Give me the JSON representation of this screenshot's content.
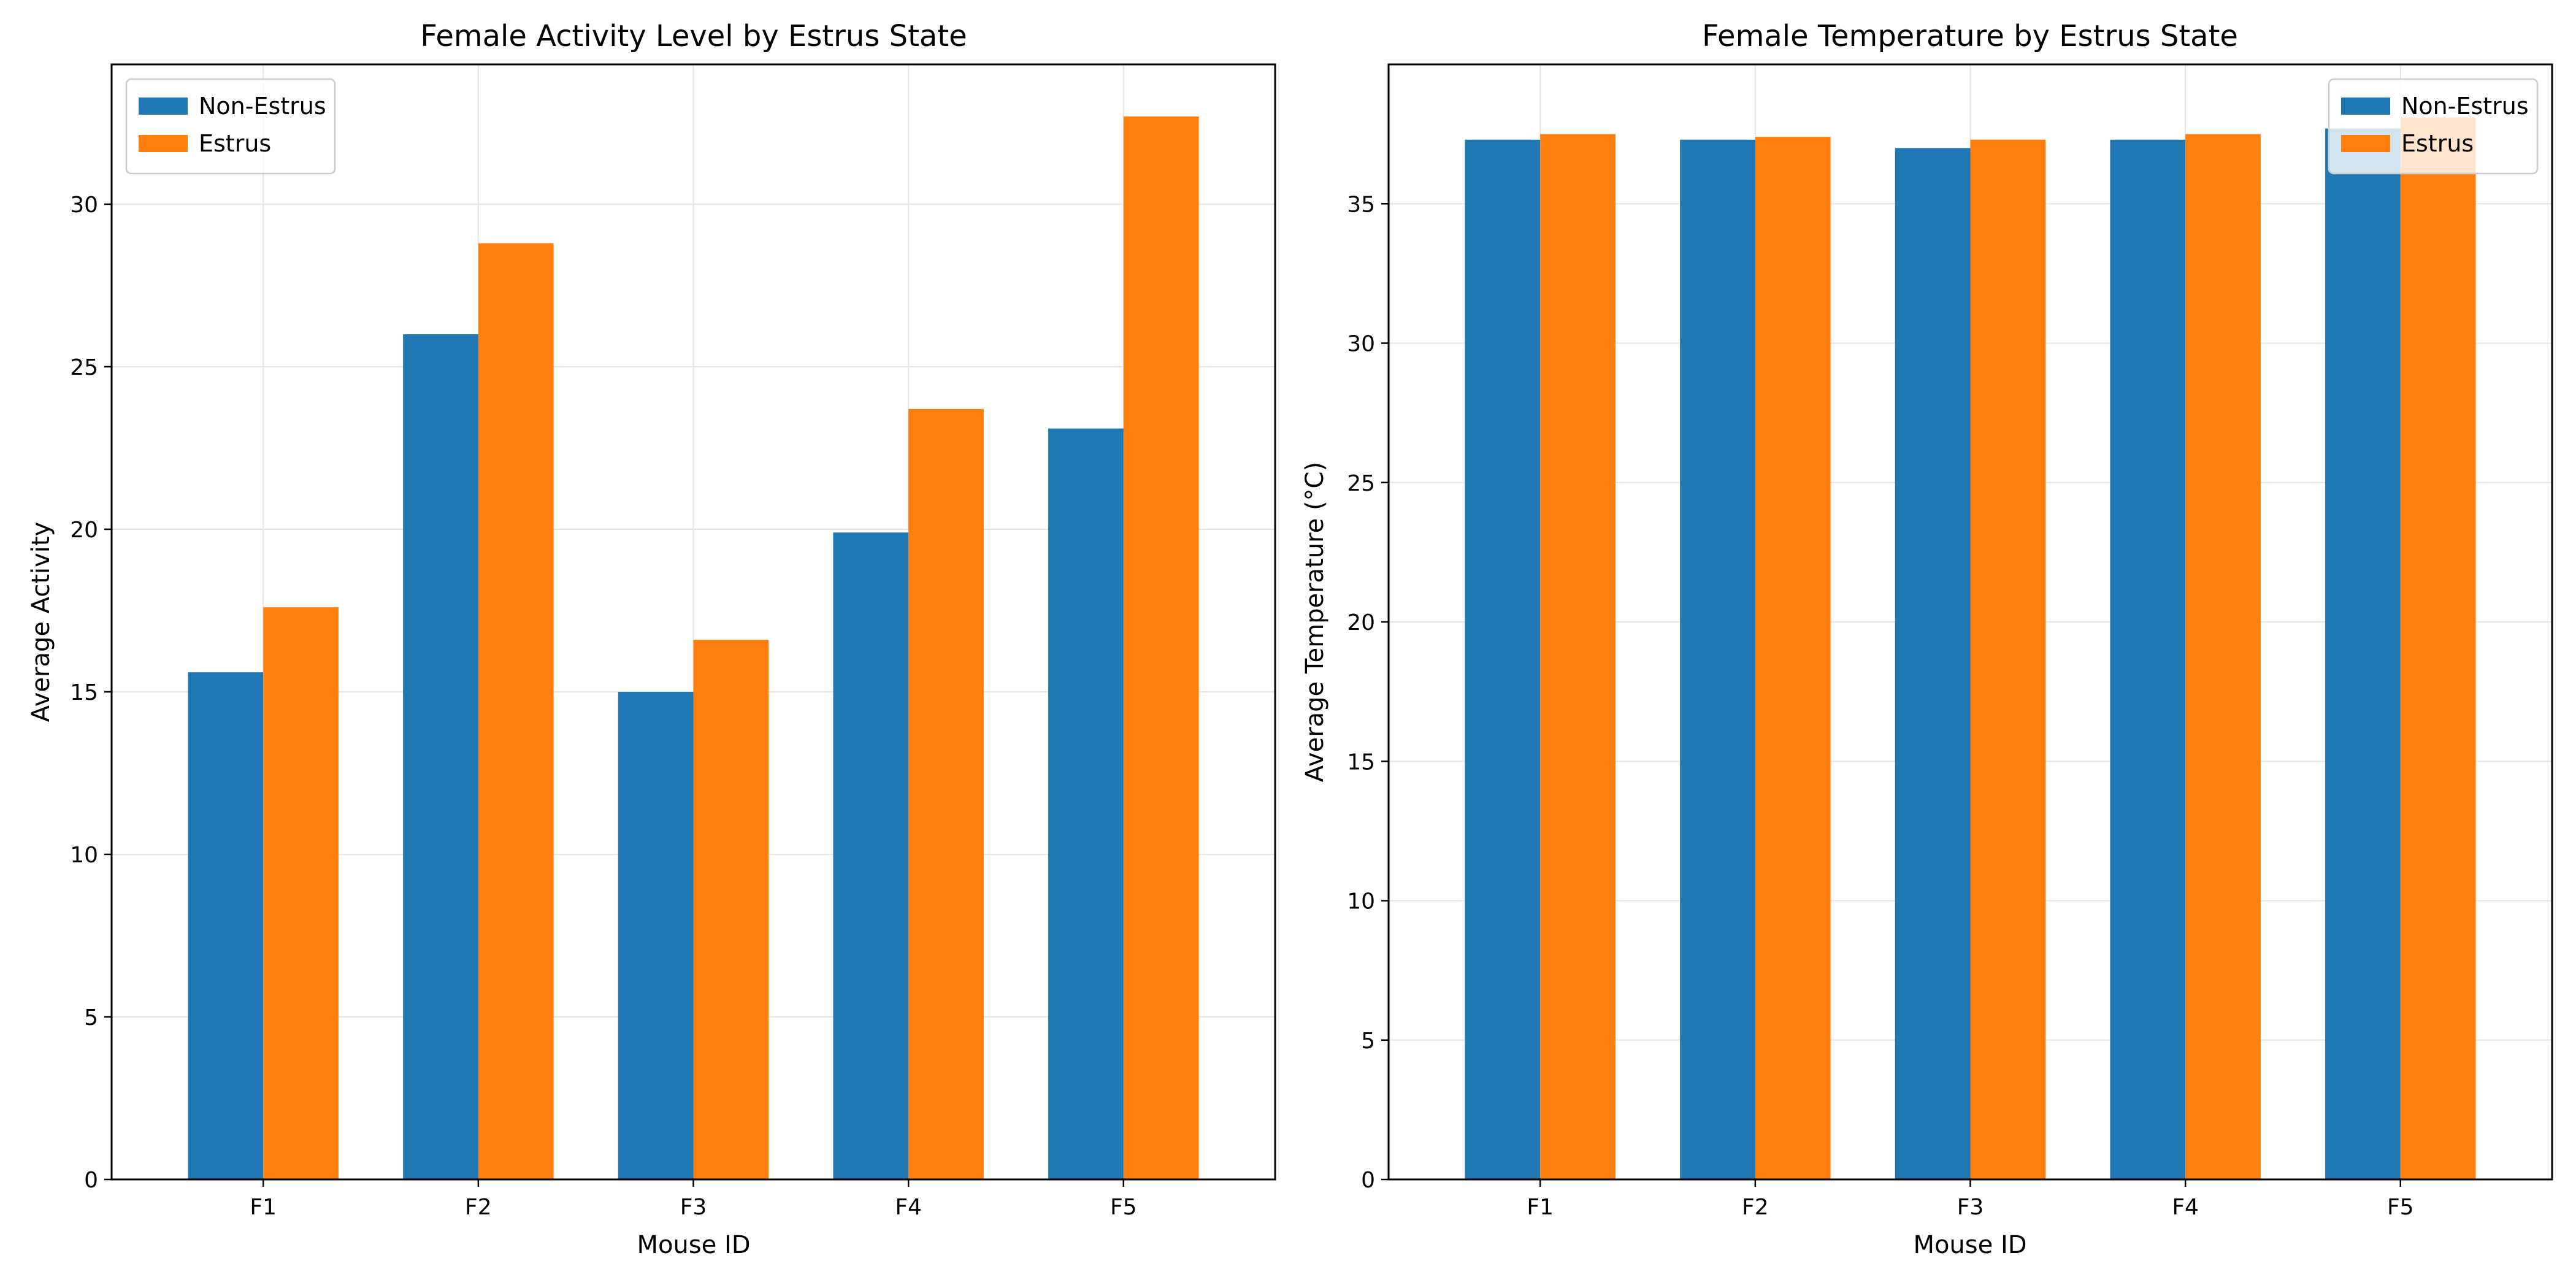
{
  "chart_data": [
    {
      "type": "bar",
      "title": "Female Activity Level by Estrus State",
      "xlabel": "Mouse ID",
      "ylabel": "Average Activity",
      "categories": [
        "F1",
        "F2",
        "F3",
        "F4",
        "F5"
      ],
      "series": [
        {
          "name": "Non-Estrus",
          "color": "#1f77b4",
          "values": [
            15.6,
            26.0,
            15.0,
            19.9,
            23.1
          ]
        },
        {
          "name": "Estrus",
          "color": "#ff7f0e",
          "values": [
            17.6,
            28.8,
            16.6,
            23.7,
            32.7
          ]
        }
      ],
      "ylim": [
        0,
        34.3
      ],
      "yticks": [
        0,
        5,
        10,
        15,
        20,
        25,
        30
      ],
      "grid": true,
      "legend_position": "upper left"
    },
    {
      "type": "bar",
      "title": "Female Temperature by Estrus State",
      "xlabel": "Mouse ID",
      "ylabel": "Average Temperature (°C)",
      "categories": [
        "F1",
        "F2",
        "F3",
        "F4",
        "F5"
      ],
      "series": [
        {
          "name": "Non-Estrus",
          "color": "#1f77b4",
          "values": [
            37.3,
            37.3,
            37.0,
            37.3,
            37.7
          ]
        },
        {
          "name": "Estrus",
          "color": "#ff7f0e",
          "values": [
            37.5,
            37.4,
            37.3,
            37.5,
            38.1
          ]
        }
      ],
      "ylim": [
        0,
        40.0
      ],
      "yticks": [
        0,
        5,
        10,
        15,
        20,
        25,
        30,
        35
      ],
      "grid": true,
      "legend_position": "upper right"
    }
  ]
}
